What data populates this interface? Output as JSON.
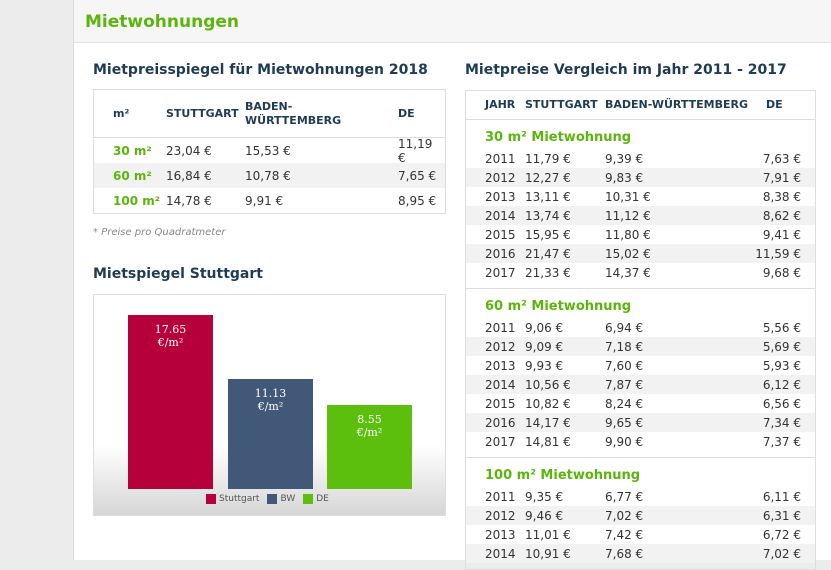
{
  "header": {
    "title": "Mietwohnungen"
  },
  "left": {
    "title": "Mietpreisspiegel für Mietwohnungen 2018",
    "table": {
      "headers": [
        "m²",
        "STUTTGART",
        "BADEN-WÜRTTEMBERG",
        "DE"
      ],
      "rows": [
        [
          "30 m²",
          "23,04 €",
          "15,53 €",
          "11,19 €"
        ],
        [
          "60 m²",
          "16,84 €",
          "10,78 €",
          "7,65 €"
        ],
        [
          "100 m²",
          "14,78 €",
          "9,91 €",
          "8,95 €"
        ]
      ]
    },
    "footnote": "* Preise pro Quadratmeter"
  },
  "chart_data": {
    "type": "bar",
    "title": "Mietspiegel Stuttgart",
    "categories": [
      "Stuttgart",
      "BW",
      "DE"
    ],
    "values": [
      17.65,
      11.13,
      8.55
    ],
    "value_labels": [
      "17.65 €/m²",
      "11.13 €/m²",
      "8.55 €/m²"
    ],
    "colors": [
      "#b6003b",
      "#425879",
      "#5cbf0e"
    ]
  },
  "right": {
    "title": "Mietpreise Vergleich im Jahr 2011 - 2017",
    "table": {
      "headers": [
        "JAHR",
        "STUTTGART",
        "BADEN-WÜRTTEMBERG",
        "DE"
      ],
      "groups": [
        {
          "title": "30 m² Mietwohnung",
          "rows": [
            [
              "2011",
              "11,79 €",
              "9,39 €",
              "7,63 €"
            ],
            [
              "2012",
              "12,27 €",
              "9,83 €",
              "7,91 €"
            ],
            [
              "2013",
              "13,11 €",
              "10,31 €",
              "8,38 €"
            ],
            [
              "2014",
              "13,74 €",
              "11,12 €",
              "8,62 €"
            ],
            [
              "2015",
              "15,95 €",
              "11,80 €",
              "9,41 €"
            ],
            [
              "2016",
              "21,47 €",
              "15,02 €",
              "11,59 €"
            ],
            [
              "2017",
              "21,33 €",
              "14,37 €",
              "9,68 €"
            ]
          ]
        },
        {
          "title": "60 m² Mietwohnung",
          "rows": [
            [
              "2011",
              "9,06 €",
              "6,94 €",
              "5,56 €"
            ],
            [
              "2012",
              "9,09 €",
              "7,18 €",
              "5,69 €"
            ],
            [
              "2013",
              "9,93 €",
              "7,60 €",
              "5,93 €"
            ],
            [
              "2014",
              "10,56 €",
              "7,87 €",
              "6,12 €"
            ],
            [
              "2015",
              "10,82 €",
              "8,24 €",
              "6,56 €"
            ],
            [
              "2016",
              "14,17 €",
              "9,65 €",
              "7,34 €"
            ],
            [
              "2017",
              "14,81 €",
              "9,90 €",
              "7,37 €"
            ]
          ]
        },
        {
          "title": "100 m² Mietwohnung",
          "rows": [
            [
              "2011",
              "9,35 €",
              "6,77 €",
              "6,11 €"
            ],
            [
              "2012",
              "9,46 €",
              "7,02 €",
              "6,31 €"
            ],
            [
              "2013",
              "11,01 €",
              "7,42 €",
              "6,72 €"
            ],
            [
              "2014",
              "10,91 €",
              "7,68 €",
              "7,02 €"
            ]
          ]
        }
      ]
    }
  }
}
